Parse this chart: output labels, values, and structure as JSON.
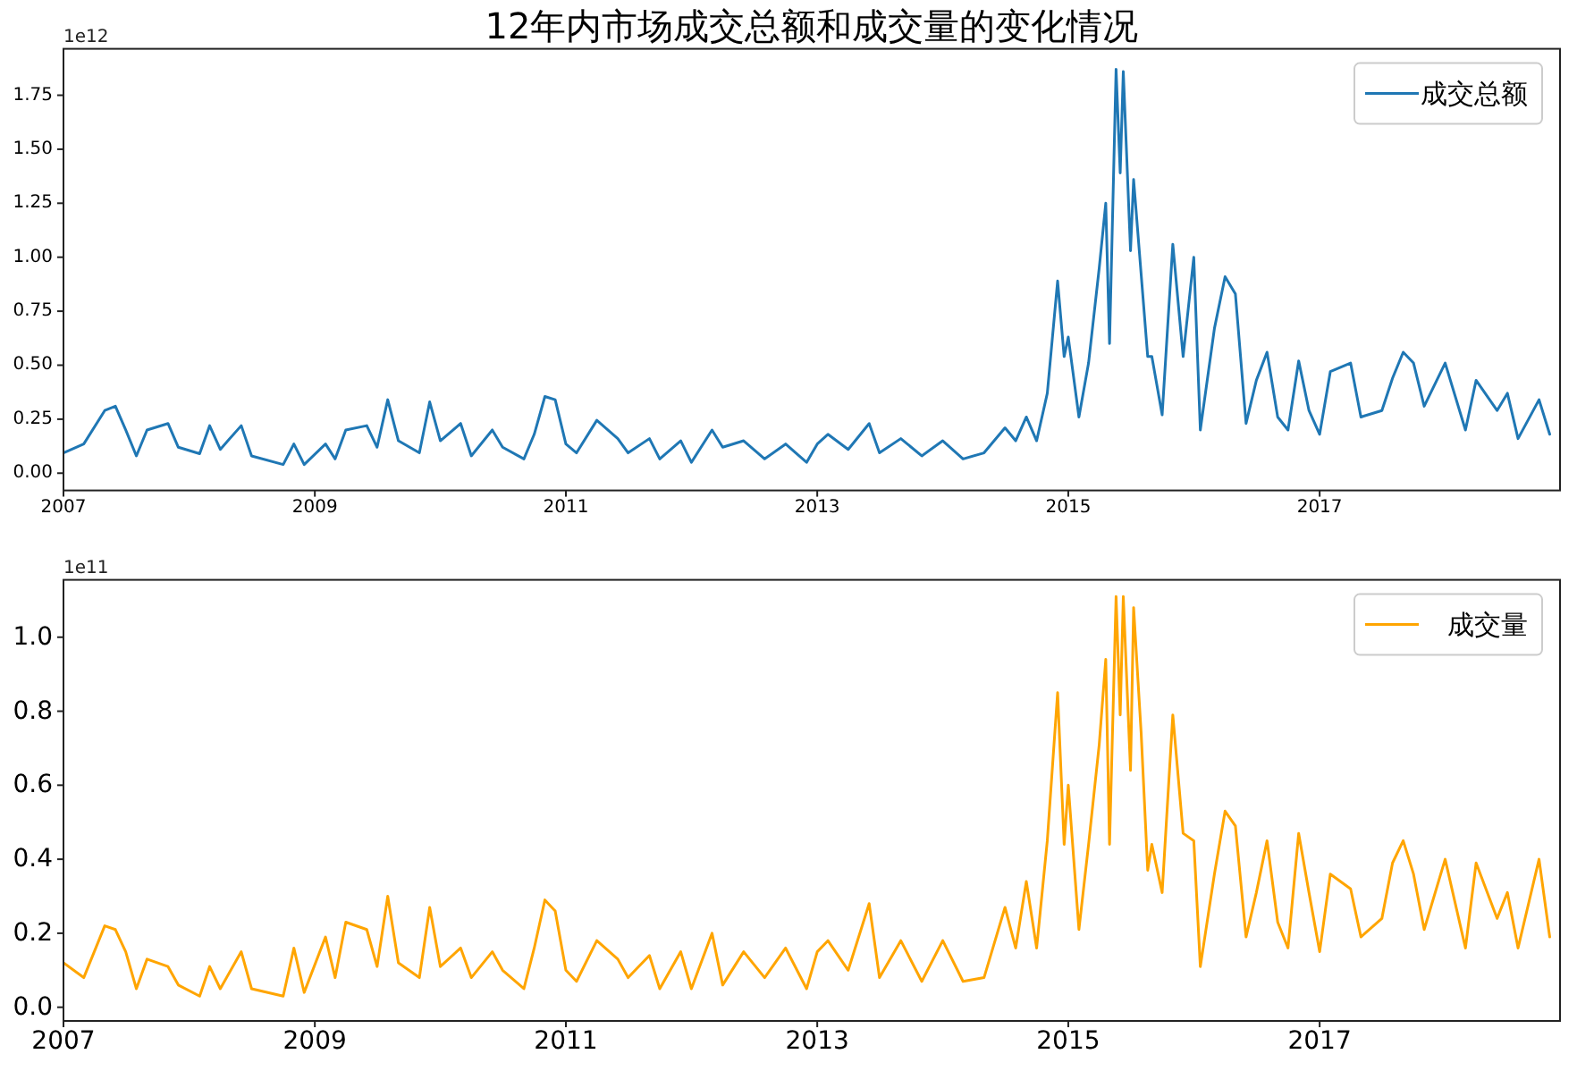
{
  "chart_data": [
    {
      "type": "line",
      "title": "12年内市场成交总额和成交量的变化情况",
      "annotations": [
        "1e12"
      ],
      "legend": "top right",
      "xlim": [
        "2007-01-01",
        "2018-12-01"
      ],
      "xticks": [
        "2007",
        "2009",
        "2011",
        "2013",
        "2015",
        "2017"
      ],
      "ylim": [
        -0.08,
        1.965
      ],
      "yticks": [
        {
          "value": 0,
          "label": "0.00"
        },
        {
          "value": 0.25,
          "label": "0.25"
        },
        {
          "value": 0.5,
          "label": "0.50"
        },
        {
          "value": 0.75,
          "label": "0.75"
        },
        {
          "value": 1,
          "label": "1.00"
        },
        {
          "value": 1.25,
          "label": "1.25"
        },
        {
          "value": 1.5,
          "label": "1.50"
        },
        {
          "value": 1.75,
          "label": "1.75"
        }
      ],
      "series": [
        {
          "name": "成交总额",
          "color": "#1f77b4",
          "x": [
            "2007-01",
            "2007-03",
            "2007-05",
            "2007-06",
            "2007-07",
            "2007-08",
            "2007-09",
            "2007-11",
            "2007-12",
            "2008-02",
            "2008-03",
            "2008-04",
            "2008-06",
            "2008-07",
            "2008-10",
            "2008-11",
            "2008-12",
            "2009-02",
            "2009-03",
            "2009-04",
            "2009-06",
            "2009-07",
            "2009-08",
            "2009-09",
            "2009-11",
            "2009-12",
            "2010-01",
            "2010-03",
            "2010-04",
            "2010-06",
            "2010-07",
            "2010-09",
            "2010-10",
            "2010-11",
            "2010-12",
            "2011-01",
            "2011-02",
            "2011-04",
            "2011-06",
            "2011-07",
            "2011-09",
            "2011-10",
            "2011-12",
            "2012-01",
            "2012-03",
            "2012-04",
            "2012-06",
            "2012-08",
            "2012-10",
            "2012-12",
            "2013-01",
            "2013-02",
            "2013-04",
            "2013-06",
            "2013-07",
            "2013-09",
            "2013-11",
            "2014-01",
            "2014-03",
            "2014-05",
            "2014-07",
            "2014-08",
            "2014-09",
            "2014-10",
            "2014-11",
            "2014-12",
            "2014-12-20",
            "2015-01",
            "2015-02",
            "2015-03",
            "2015-04",
            "2015-04-20",
            "2015-05",
            "2015-05-20",
            "2015-06",
            "2015-06-10",
            "2015-07",
            "2015-07-10",
            "2015-08",
            "2015-08-20",
            "2015-09",
            "2015-10",
            "2015-11",
            "2015-12",
            "2016-01",
            "2016-01-20",
            "2016-03",
            "2016-04",
            "2016-05",
            "2016-06",
            "2016-07",
            "2016-08",
            "2016-09",
            "2016-10",
            "2016-11",
            "2016-12",
            "2017-01",
            "2017-02",
            "2017-04",
            "2017-05",
            "2017-07",
            "2017-08",
            "2017-09",
            "2017-10",
            "2017-11",
            "2018-01",
            "2018-03",
            "2018-04",
            "2018-06",
            "2018-07",
            "2018-08",
            "2018-10",
            "2018-11"
          ],
          "values": [
            0.094,
            0.135,
            0.29,
            0.31,
            0.2,
            0.08,
            0.2,
            0.23,
            0.12,
            0.09,
            0.22,
            0.11,
            0.22,
            0.08,
            0.04,
            0.135,
            0.04,
            0.135,
            0.066,
            0.2,
            0.22,
            0.12,
            0.34,
            0.15,
            0.094,
            0.33,
            0.15,
            0.23,
            0.08,
            0.2,
            0.12,
            0.066,
            0.18,
            0.355,
            0.34,
            0.135,
            0.094,
            0.245,
            0.16,
            0.094,
            0.16,
            0.066,
            0.15,
            0.05,
            0.2,
            0.12,
            0.15,
            0.066,
            0.135,
            0.05,
            0.135,
            0.18,
            0.11,
            0.23,
            0.094,
            0.16,
            0.08,
            0.15,
            0.066,
            0.094,
            0.21,
            0.15,
            0.26,
            0.15,
            0.37,
            0.89,
            0.54,
            0.63,
            0.26,
            0.51,
            0.95,
            1.25,
            0.6,
            1.87,
            1.39,
            1.86,
            1.03,
            1.36,
            0.92,
            0.54,
            0.54,
            0.27,
            1.06,
            0.54,
            1.0,
            0.2,
            0.67,
            0.91,
            0.83,
            0.23,
            0.43,
            0.56,
            0.26,
            0.2,
            0.52,
            0.29,
            0.18,
            0.47,
            0.51,
            0.26,
            0.29,
            0.44,
            0.56,
            0.51,
            0.31,
            0.51,
            0.2,
            0.43,
            0.29,
            0.37,
            0.16,
            0.34,
            0.18
          ]
        }
      ]
    },
    {
      "type": "line",
      "annotations": [
        "1e11"
      ],
      "legend": "top right",
      "xlim": [
        "2007-01-01",
        "2018-12-01"
      ],
      "xticks": [
        "2007",
        "2009",
        "2011",
        "2013",
        "2015",
        "2017"
      ],
      "ylim": [
        -0.037,
        1.155
      ],
      "yticks": [
        {
          "value": 0,
          "label": "0.0"
        },
        {
          "value": 0.2,
          "label": "0.2"
        },
        {
          "value": 0.4,
          "label": "0.4"
        },
        {
          "value": 0.6,
          "label": "0.6"
        },
        {
          "value": 0.8,
          "label": "0.8"
        },
        {
          "value": 1,
          "label": "1.0"
        }
      ],
      "series": [
        {
          "name": "成交量",
          "color": "#ffa500",
          "x": [
            "2007-01",
            "2007-03",
            "2007-05",
            "2007-06",
            "2007-07",
            "2007-08",
            "2007-09",
            "2007-11",
            "2007-12",
            "2008-02",
            "2008-03",
            "2008-04",
            "2008-06",
            "2008-07",
            "2008-10",
            "2008-11",
            "2008-12",
            "2009-02",
            "2009-03",
            "2009-04",
            "2009-06",
            "2009-07",
            "2009-08",
            "2009-09",
            "2009-11",
            "2009-12",
            "2010-01",
            "2010-03",
            "2010-04",
            "2010-06",
            "2010-07",
            "2010-09",
            "2010-10",
            "2010-11",
            "2010-12",
            "2011-01",
            "2011-02",
            "2011-04",
            "2011-06",
            "2011-07",
            "2011-09",
            "2011-10",
            "2011-12",
            "2012-01",
            "2012-03",
            "2012-04",
            "2012-06",
            "2012-08",
            "2012-10",
            "2012-12",
            "2013-01",
            "2013-02",
            "2013-04",
            "2013-06",
            "2013-07",
            "2013-09",
            "2013-11",
            "2014-01",
            "2014-03",
            "2014-05",
            "2014-07",
            "2014-08",
            "2014-09",
            "2014-10",
            "2014-11",
            "2014-12",
            "2014-12-20",
            "2015-01",
            "2015-02",
            "2015-03",
            "2015-04",
            "2015-04-20",
            "2015-05",
            "2015-05-20",
            "2015-06",
            "2015-06-10",
            "2015-07",
            "2015-07-10",
            "2015-08",
            "2015-08-20",
            "2015-09",
            "2015-10",
            "2015-11",
            "2015-12",
            "2016-01",
            "2016-01-20",
            "2016-03",
            "2016-04",
            "2016-05",
            "2016-06",
            "2016-07",
            "2016-08",
            "2016-09",
            "2016-10",
            "2016-11",
            "2016-12",
            "2017-01",
            "2017-02",
            "2017-04",
            "2017-05",
            "2017-07",
            "2017-08",
            "2017-09",
            "2017-10",
            "2017-11",
            "2018-01",
            "2018-03",
            "2018-04",
            "2018-06",
            "2018-07",
            "2018-08",
            "2018-10",
            "2018-11"
          ],
          "values": [
            0.12,
            0.08,
            0.22,
            0.21,
            0.15,
            0.05,
            0.13,
            0.11,
            0.06,
            0.03,
            0.11,
            0.05,
            0.15,
            0.05,
            0.03,
            0.16,
            0.04,
            0.19,
            0.08,
            0.23,
            0.21,
            0.11,
            0.3,
            0.12,
            0.08,
            0.27,
            0.11,
            0.16,
            0.08,
            0.15,
            0.1,
            0.05,
            0.16,
            0.29,
            0.26,
            0.1,
            0.07,
            0.18,
            0.13,
            0.08,
            0.14,
            0.05,
            0.15,
            0.05,
            0.2,
            0.06,
            0.15,
            0.08,
            0.16,
            0.05,
            0.15,
            0.18,
            0.1,
            0.28,
            0.08,
            0.18,
            0.07,
            0.18,
            0.07,
            0.08,
            0.27,
            0.16,
            0.34,
            0.16,
            0.45,
            0.85,
            0.44,
            0.6,
            0.21,
            0.44,
            0.71,
            0.94,
            0.44,
            1.11,
            0.79,
            1.11,
            0.64,
            1.08,
            0.74,
            0.37,
            0.44,
            0.31,
            0.79,
            0.47,
            0.45,
            0.11,
            0.36,
            0.53,
            0.49,
            0.19,
            0.31,
            0.45,
            0.23,
            0.16,
            0.47,
            0.31,
            0.15,
            0.36,
            0.32,
            0.19,
            0.24,
            0.39,
            0.45,
            0.36,
            0.21,
            0.4,
            0.16,
            0.39,
            0.24,
            0.31,
            0.16,
            0.4,
            0.19
          ]
        }
      ]
    }
  ]
}
